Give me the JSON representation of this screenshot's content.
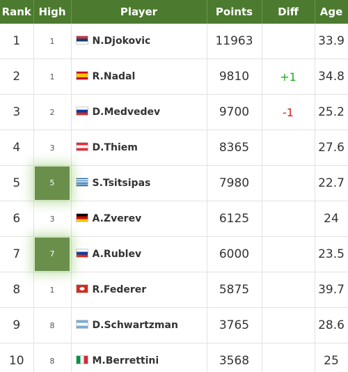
{
  "header": {
    "rank": "Rank",
    "high": "High",
    "player": "Player",
    "points": "Points",
    "diff": "Diff",
    "age": "Age"
  },
  "rows": [
    {
      "rank": 1,
      "high": 1,
      "player": "N.Djokovic",
      "points": 11963,
      "age": "33.9"
    },
    {
      "rank": 2,
      "high": 1,
      "player": "R.Nadal",
      "points": 9810,
      "diff": "+1",
      "age": "34.8"
    },
    {
      "rank": 3,
      "high": 2,
      "player": "D.Medvedev",
      "points": 9700,
      "diff": "-1",
      "age": "25.2"
    },
    {
      "rank": 4,
      "high": 3,
      "player": "D.Thiem",
      "points": 8365,
      "age": "27.6"
    },
    {
      "rank": 5,
      "high": 5,
      "highlight": true,
      "player": "S.Tsitsipas",
      "points": 7980,
      "age": "22.7"
    },
    {
      "rank": 6,
      "high": 3,
      "player": "A.Zverev",
      "points": 6125,
      "age": "24"
    },
    {
      "rank": 7,
      "high": 7,
      "highlight": true,
      "player": "A.Rublev",
      "points": 6000,
      "age": "23.5"
    },
    {
      "rank": 8,
      "high": 1,
      "player": "R.Federer",
      "points": 5875,
      "age": "39.7"
    },
    {
      "rank": 9,
      "high": 8,
      "player": "D.Schwartzman",
      "points": 3765,
      "age": "28.6"
    },
    {
      "rank": 10,
      "high": 8,
      "player": "M.Berrettini",
      "points": 3568,
      "age": "25"
    }
  ]
}
